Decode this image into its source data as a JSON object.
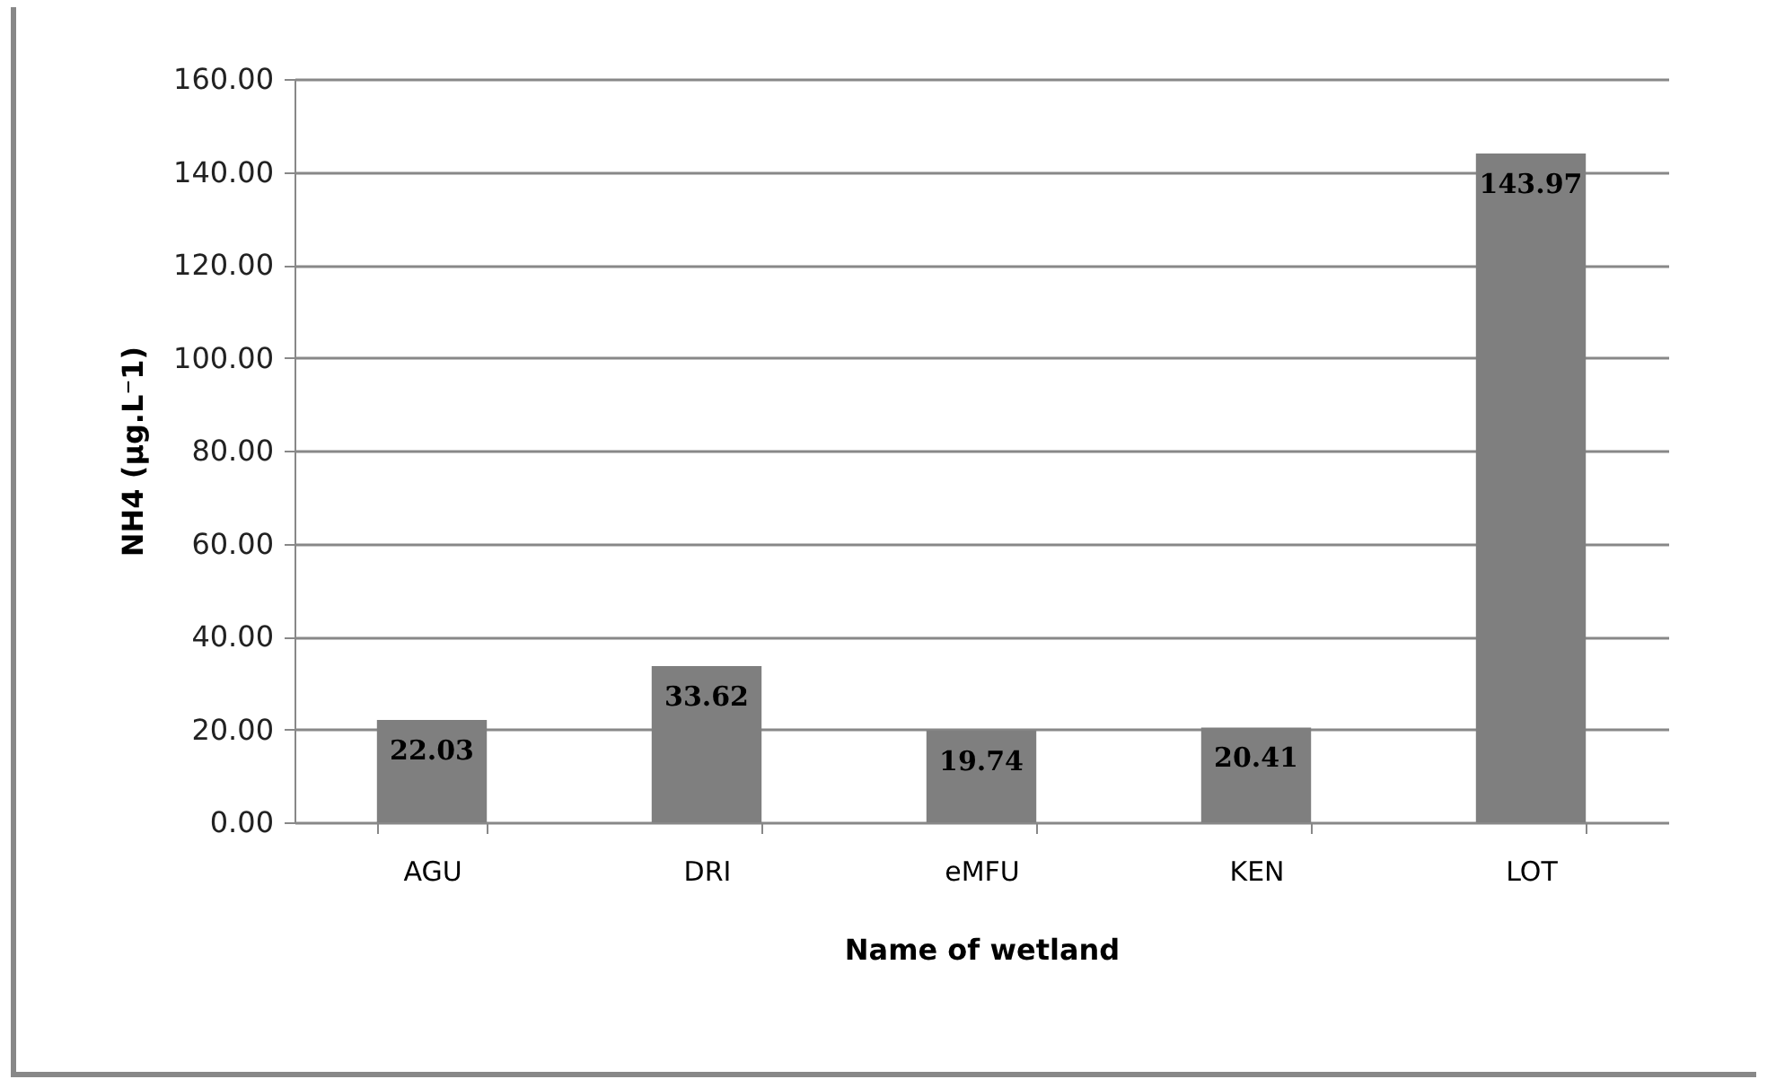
{
  "chart_data": {
    "type": "bar",
    "xlabel": "Name of wetland",
    "ylabel": "NH4 (µg.L⁻1)",
    "categories": [
      "AGU",
      "DRI",
      "eMFU",
      "KEN",
      "LOT"
    ],
    "values": [
      22.03,
      33.62,
      19.74,
      20.41,
      143.97
    ],
    "color": "#7f7f7f",
    "ylim": [
      0,
      160
    ],
    "yticks": [
      {
        "value": 0,
        "label": "0.00"
      },
      {
        "value": 20,
        "label": "20.00"
      },
      {
        "value": 40,
        "label": "40.00"
      },
      {
        "value": 60,
        "label": "60.00"
      },
      {
        "value": 80,
        "label": "80.00"
      },
      {
        "value": 100,
        "label": "100.00"
      },
      {
        "value": 120,
        "label": "120.00"
      },
      {
        "value": 140,
        "label": "140.00"
      },
      {
        "value": 160,
        "label": "160.00"
      }
    ],
    "grid": "y",
    "data_labels": true
  }
}
